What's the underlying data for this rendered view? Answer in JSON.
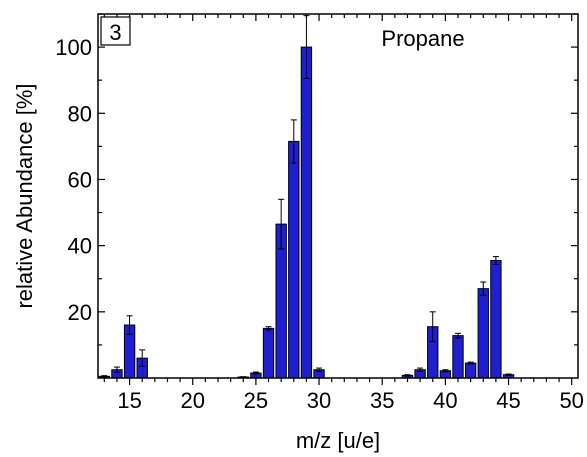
{
  "chart_data": {
    "type": "bar",
    "panel_label": "3",
    "annotation": "Propane",
    "xlabel": "m/z [u/e]",
    "ylabel": "relative Abundance [%]",
    "xlim": [
      12.5,
      50.5
    ],
    "ylim": [
      0,
      110
    ],
    "x_ticks": [
      15,
      20,
      25,
      30,
      35,
      40,
      45,
      50
    ],
    "y_ticks": [
      20,
      40,
      60,
      80,
      100
    ],
    "bar_color": "#1f1fd0",
    "grid": false,
    "legend": "none",
    "bars": [
      {
        "x": 13,
        "value": 0.5,
        "error": 0.2
      },
      {
        "x": 14,
        "value": 2.5,
        "error": 0.8
      },
      {
        "x": 15,
        "value": 16,
        "error": 2.8
      },
      {
        "x": 16,
        "value": 6,
        "error": 2.5
      },
      {
        "x": 24,
        "value": 0.3,
        "error": 0.1
      },
      {
        "x": 25,
        "value": 1.5,
        "error": 0.3
      },
      {
        "x": 26,
        "value": 15,
        "error": 0.5
      },
      {
        "x": 27,
        "value": 46.5,
        "error": 7.5
      },
      {
        "x": 28,
        "value": 71.5,
        "error": 6.5
      },
      {
        "x": 29,
        "value": 100,
        "error": 9.5
      },
      {
        "x": 30,
        "value": 2.5,
        "error": 0.5
      },
      {
        "x": 37,
        "value": 0.8,
        "error": 0.2
      },
      {
        "x": 38,
        "value": 2.5,
        "error": 0.5
      },
      {
        "x": 39,
        "value": 15.5,
        "error": 4.5
      },
      {
        "x": 40,
        "value": 2.2,
        "error": 0.3
      },
      {
        "x": 41,
        "value": 12.8,
        "error": 0.7
      },
      {
        "x": 42,
        "value": 4.5,
        "error": 0.3
      },
      {
        "x": 43,
        "value": 27,
        "error": 2.0
      },
      {
        "x": 44,
        "value": 35.5,
        "error": 1.2
      },
      {
        "x": 45,
        "value": 1.0,
        "error": 0.2
      }
    ]
  }
}
